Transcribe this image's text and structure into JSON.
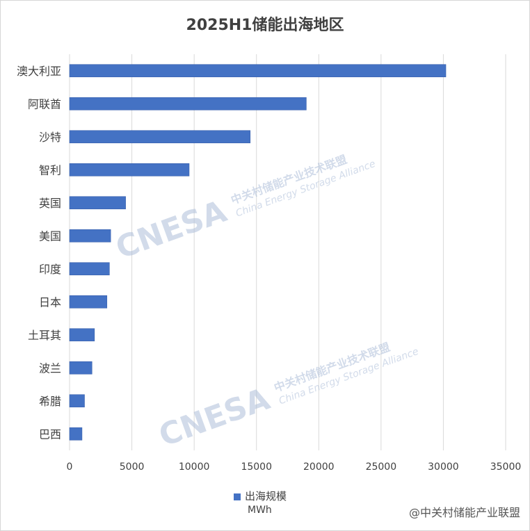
{
  "chart_data": {
    "type": "bar",
    "orientation": "horizontal",
    "title": "2025H1储能出海地区",
    "categories": [
      "澳大利亚",
      "阿联酋",
      "沙特",
      "智利",
      "英国",
      "美国",
      "印度",
      "日本",
      "土耳其",
      "波兰",
      "希腊",
      "巴西"
    ],
    "series": [
      {
        "name": "出海规模",
        "values": [
          30200,
          19000,
          14500,
          9600,
          4500,
          3300,
          3200,
          3000,
          2000,
          1800,
          1200,
          1000
        ]
      }
    ],
    "xlim": [
      0,
      35000
    ],
    "xticks": [
      "0",
      "5000",
      "10000",
      "15000",
      "20000",
      "25000",
      "30000",
      "35000"
    ],
    "unit": "MWh",
    "grid": "vertical",
    "legend_position": "bottom",
    "bar_color": "#4472c4"
  },
  "watermark": {
    "brand": "CNESA",
    "cn": "中关村储能产业技术联盟",
    "en": "China Energy Storage Alliance"
  },
  "source_credit": "@中关村储能产业联盟"
}
